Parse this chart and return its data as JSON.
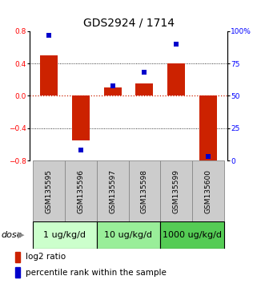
{
  "title": "GDS2924 / 1714",
  "samples": [
    "GSM135595",
    "GSM135596",
    "GSM135597",
    "GSM135598",
    "GSM135599",
    "GSM135600"
  ],
  "log2_ratio": [
    0.5,
    -0.55,
    0.1,
    0.15,
    0.4,
    -0.85
  ],
  "percentile_rank": [
    97,
    8,
    58,
    68,
    90,
    3
  ],
  "ylim_left": [
    -0.8,
    0.8
  ],
  "ylim_right": [
    0,
    100
  ],
  "yticks_left": [
    -0.8,
    -0.4,
    0.0,
    0.4,
    0.8
  ],
  "yticks_right": [
    0,
    25,
    50,
    75,
    100
  ],
  "ytick_labels_right": [
    "0",
    "25",
    "50",
    "75",
    "100%"
  ],
  "bar_color": "#cc2200",
  "dot_color": "#0000cc",
  "hline_color": "#cc2200",
  "grid_lines": [
    -0.4,
    0.4
  ],
  "dose_groups": [
    {
      "label": "1 ug/kg/d",
      "samples": [
        0,
        1
      ],
      "color": "#ccffcc"
    },
    {
      "label": "10 ug/kg/d",
      "samples": [
        2,
        3
      ],
      "color": "#99ee99"
    },
    {
      "label": "1000 ug/kg/d",
      "samples": [
        4,
        5
      ],
      "color": "#55cc55"
    }
  ],
  "dose_label": "dose",
  "legend_bar_label": "log2 ratio",
  "legend_dot_label": "percentile rank within the sample",
  "title_fontsize": 10,
  "tick_fontsize": 6.5,
  "sample_fontsize": 6.5,
  "dose_fontsize": 8,
  "legend_fontsize": 7.5
}
